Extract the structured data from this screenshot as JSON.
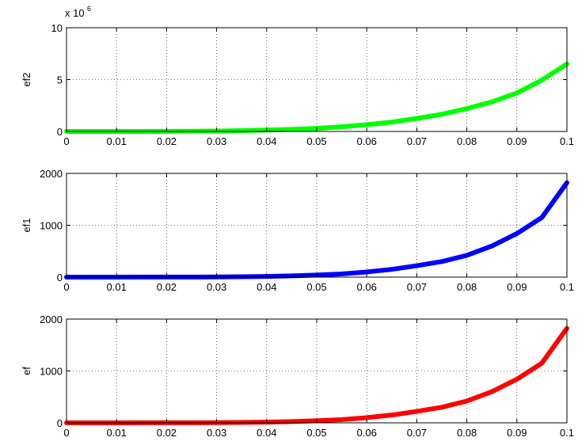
{
  "chart_data": [
    {
      "type": "line",
      "ylabel": "ef2",
      "xlim": [
        0,
        0.1
      ],
      "ylim": [
        0,
        10
      ],
      "y_multiplier_base": "x 10",
      "y_multiplier_exp": "6",
      "xticks": [
        "0",
        "0.01",
        "0.02",
        "0.03",
        "0.04",
        "0.05",
        "0.06",
        "0.07",
        "0.08",
        "0.09",
        "0.1"
      ],
      "yticks": [
        "0",
        "5",
        "10"
      ],
      "ytick_values": [
        0,
        5,
        10
      ],
      "grid": true,
      "color": "#00ff00",
      "x": [
        0,
        0.005,
        0.01,
        0.015,
        0.02,
        0.025,
        0.03,
        0.035,
        0.04,
        0.045,
        0.05,
        0.055,
        0.06,
        0.065,
        0.07,
        0.075,
        0.08,
        0.085,
        0.09,
        0.095,
        0.1
      ],
      "y": [
        0.0,
        0.0,
        0.0,
        0.0,
        0.01,
        0.02,
        0.04,
        0.08,
        0.13,
        0.2,
        0.3,
        0.45,
        0.65,
        0.9,
        1.25,
        1.65,
        2.2,
        2.85,
        3.7,
        4.95,
        6.5
      ]
    },
    {
      "type": "line",
      "ylabel": "ef1",
      "xlim": [
        0,
        0.1
      ],
      "ylim": [
        0,
        2000
      ],
      "xticks": [
        "0",
        "0.01",
        "0.02",
        "0.03",
        "0.04",
        "0.05",
        "0.06",
        "0.07",
        "0.08",
        "0.09",
        "0.1"
      ],
      "yticks": [
        "0",
        "1000",
        "2000"
      ],
      "ytick_values": [
        0,
        1000,
        2000
      ],
      "grid": true,
      "color": "#0000ff",
      "x": [
        0,
        0.005,
        0.01,
        0.015,
        0.02,
        0.025,
        0.03,
        0.035,
        0.04,
        0.045,
        0.05,
        0.055,
        0.06,
        0.065,
        0.07,
        0.075,
        0.08,
        0.085,
        0.09,
        0.095,
        0.1
      ],
      "y": [
        0,
        0,
        0,
        1,
        1,
        2,
        4,
        8,
        14,
        24,
        40,
        62,
        100,
        150,
        220,
        300,
        420,
        600,
        840,
        1150,
        1820
      ]
    },
    {
      "type": "line",
      "ylabel": "ef",
      "xlim": [
        0,
        0.1
      ],
      "ylim": [
        0,
        2000
      ],
      "xticks": [
        "0",
        "0.01",
        "0.02",
        "0.03",
        "0.04",
        "0.05",
        "0.06",
        "0.07",
        "0.08",
        "0.09",
        "0.1"
      ],
      "yticks": [
        "0",
        "1000",
        "2000"
      ],
      "ytick_values": [
        0,
        1000,
        2000
      ],
      "grid": true,
      "color": "#ff0000",
      "x": [
        0,
        0.005,
        0.01,
        0.015,
        0.02,
        0.025,
        0.03,
        0.035,
        0.04,
        0.045,
        0.05,
        0.055,
        0.06,
        0.065,
        0.07,
        0.075,
        0.08,
        0.085,
        0.09,
        0.095,
        0.1
      ],
      "y": [
        0,
        0,
        0,
        1,
        1,
        2,
        4,
        8,
        14,
        24,
        40,
        62,
        100,
        150,
        220,
        300,
        420,
        600,
        840,
        1150,
        1820
      ]
    }
  ]
}
